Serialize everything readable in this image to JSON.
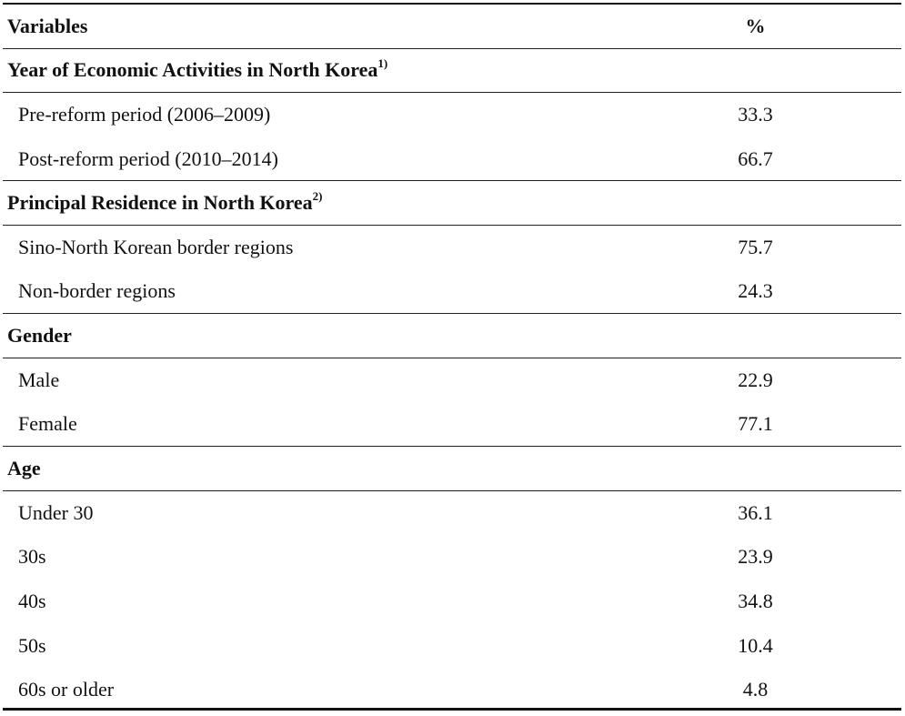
{
  "header": {
    "variables_label": "Variables",
    "percent_label": "%"
  },
  "sections": [
    {
      "title": "Year of Economic Activities in North Korea",
      "note": "1)",
      "rows": [
        {
          "label": "Pre-reform period (2006–2009)",
          "value": "33.3"
        },
        {
          "label": "Post-reform period (2010–2014)",
          "value": "66.7"
        }
      ]
    },
    {
      "title": "Principal Residence in North Korea",
      "note": "2)",
      "rows": [
        {
          "label": "Sino-North Korean border regions",
          "value": "75.7"
        },
        {
          "label": "Non-border regions",
          "value": "24.3"
        }
      ]
    },
    {
      "title": "Gender",
      "note": "",
      "rows": [
        {
          "label": "Male",
          "value": "22.9"
        },
        {
          "label": "Female",
          "value": "77.1"
        }
      ]
    },
    {
      "title": "Age",
      "note": "",
      "rows": [
        {
          "label": "Under 30",
          "value": "36.1"
        },
        {
          "label": "30s",
          "value": "23.9"
        },
        {
          "label": "40s",
          "value": "34.8"
        },
        {
          "label": "50s",
          "value": "10.4"
        },
        {
          "label": "60s or older",
          "value": "4.8"
        }
      ]
    }
  ]
}
